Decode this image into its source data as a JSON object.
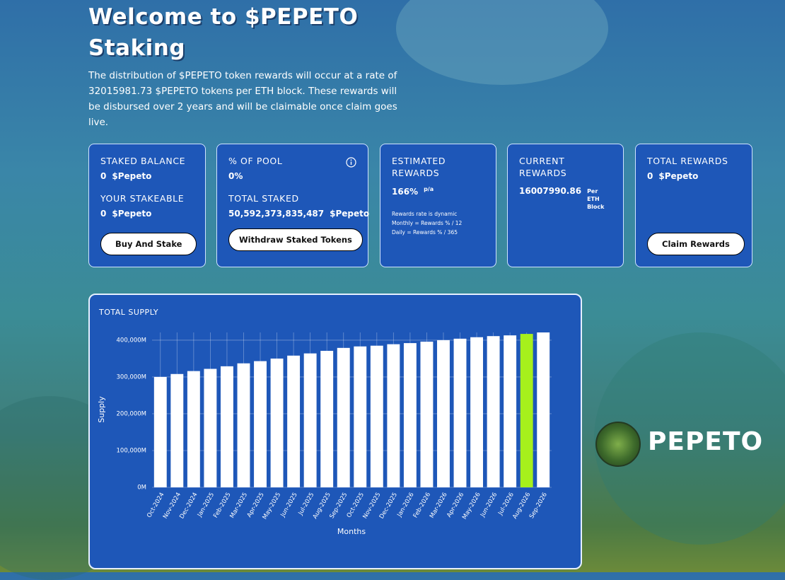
{
  "header": {
    "title": "Welcome to $PEPETO Staking",
    "description": "The distribution of $PEPETO token rewards will occur at a rate of 32015981.73 $PEPETO tokens per ETH block. These rewards will be disbursed over 2 years and will be claimable once claim goes live."
  },
  "cards": [
    {
      "label": "STAKED BALANCE",
      "value": "0",
      "unit": "$Pepeto",
      "label2": "YOUR STAKEABLE",
      "value2": "0",
      "unit2": "$Pepeto",
      "button": "Buy And Stake"
    },
    {
      "label": "% OF POOL",
      "value": "0%",
      "label2": "TOTAL STAKED",
      "value2": "50,592,373,835,487",
      "unit2": "$Pepeto",
      "button": "Withdraw Staked Tokens"
    },
    {
      "label": "ESTIMATED REWARDS",
      "value": "166%",
      "unit": "p/a",
      "notes": [
        "Rewards rate is dynamic",
        "Monthly = Rewards % / 12",
        "Daily = Rewards % / 365"
      ]
    },
    {
      "label": "CURRENT REWARDS",
      "value": "16007990.86",
      "unit": "Per ETH Block"
    },
    {
      "label": "TOTAL REWARDS",
      "value": "0",
      "unit": "$Pepeto",
      "button": "Claim Rewards"
    }
  ],
  "logo": "PEPETO",
  "chart_data": {
    "type": "bar",
    "title": "TOTAL SUPPLY",
    "y_label": "Supply",
    "x_label": "Months",
    "categories": [
      "Oct-2024",
      "Nov-2024",
      "Dec-2024",
      "Jan-2025",
      "Feb-2025",
      "Mar-2025",
      "Apr-2025",
      "May-2025",
      "Jun-2025",
      "Jul-2025",
      "Aug-2025",
      "Sep-2025",
      "Oct-2025",
      "Nov-2025",
      "Dec-2025",
      "Jan-2026",
      "Feb-2026",
      "Mar-2026",
      "Apr-2026",
      "May-2026",
      "Jun-2026",
      "Jul-2026",
      "Aug-2026",
      "Sep-2026"
    ],
    "values": [
      300000,
      308000,
      316000,
      322000,
      329000,
      337000,
      343000,
      350000,
      358000,
      364000,
      371000,
      379000,
      383000,
      385000,
      389000,
      392000,
      396000,
      400000,
      404000,
      408000,
      411000,
      413000,
      417000,
      421000
    ],
    "colors": [
      "#ffffff",
      "#ffffff",
      "#ffffff",
      "#ffffff",
      "#ffffff",
      "#ffffff",
      "#ffffff",
      "#ffffff",
      "#ffffff",
      "#ffffff",
      "#ffffff",
      "#ffffff",
      "#ffffff",
      "#ffffff",
      "#ffffff",
      "#ffffff",
      "#ffffff",
      "#ffffff",
      "#ffffff",
      "#ffffff",
      "#ffffff",
      "#ffffff",
      "#a6f01c",
      "#ffffff"
    ],
    "ylim": [
      0,
      421000
    ],
    "yticks": [
      {
        "value": 0,
        "label": "0M"
      },
      {
        "value": 100000,
        "label": "100,000M"
      },
      {
        "value": 200000,
        "label": "200,000M"
      },
      {
        "value": 300000,
        "label": "300,000M"
      },
      {
        "value": 400000,
        "label": "400,000M"
      }
    ],
    "grid": true
  }
}
